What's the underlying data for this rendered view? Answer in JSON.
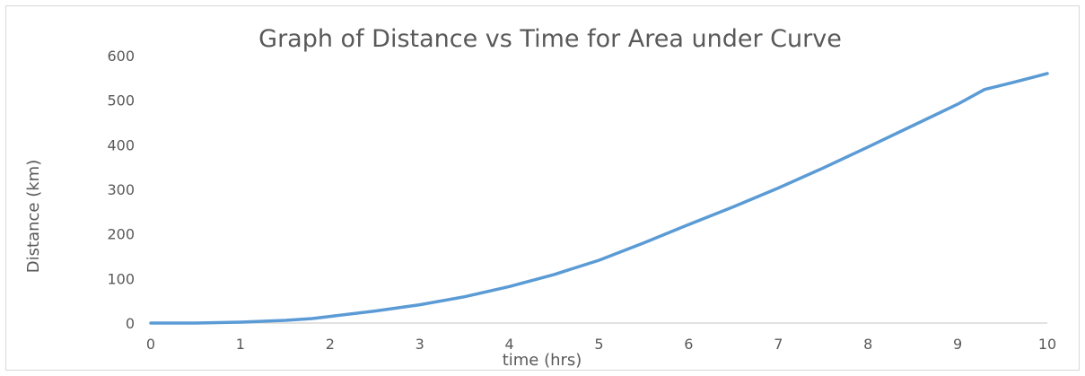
{
  "chart_data": {
    "type": "line",
    "title": "Graph of Distance vs Time for Area under Curve",
    "xlabel": "time (hrs)",
    "ylabel": "Distance (km)",
    "xlim": [
      0,
      10
    ],
    "ylim": [
      0,
      600
    ],
    "x_ticks": [
      "0",
      "1",
      "2",
      "3",
      "4",
      "5",
      "6",
      "7",
      "8",
      "9",
      "10"
    ],
    "y_ticks": [
      "0",
      "100",
      "200",
      "300",
      "400",
      "500",
      "600"
    ],
    "grid": false,
    "legend": "none",
    "line_color": "#5b9bd5",
    "axis_color": "#d9d9d9",
    "series": [
      {
        "x": [
          0,
          0.5,
          1,
          1.5,
          1.8,
          2,
          2.5,
          3,
          3.5,
          4,
          4.5,
          5,
          5.5,
          6,
          6.5,
          7,
          7.5,
          8,
          8.5,
          9,
          9.3,
          9.6,
          10
        ],
        "y": [
          0,
          0,
          2,
          6,
          10,
          15,
          27,
          41,
          59,
          82,
          109,
          141,
          180,
          221,
          261,
          303,
          348,
          395,
          443,
          491,
          524,
          539,
          560
        ]
      }
    ]
  }
}
